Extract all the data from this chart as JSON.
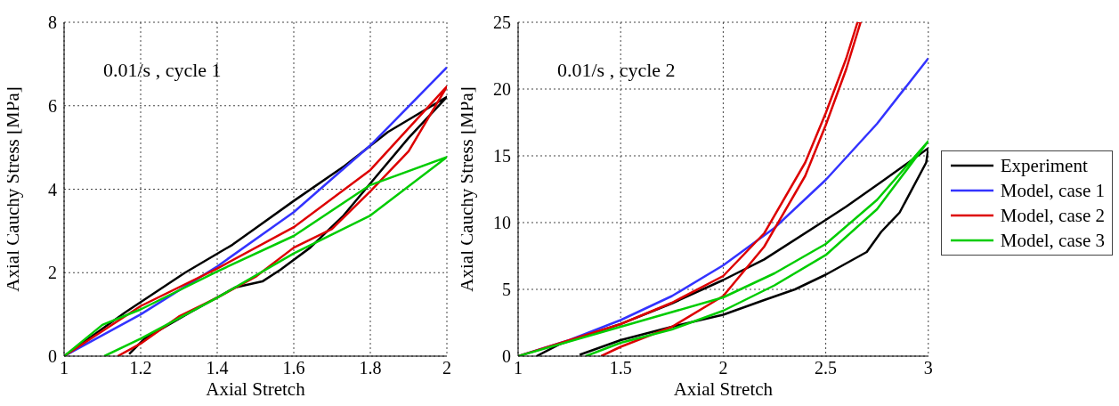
{
  "chart_data": [
    {
      "type": "line",
      "xlabel": "Axial Stretch",
      "ylabel": "Axial Cauchy Stress [MPa]",
      "annotations": [
        "0.01/s , cycle 1"
      ],
      "xlim": [
        1,
        2
      ],
      "xticks": [
        1,
        1.2,
        1.4,
        1.6,
        1.8,
        2
      ],
      "ylim": [
        0,
        8
      ],
      "yticks": [
        0,
        2,
        4,
        6,
        8
      ],
      "grid": true,
      "legend": false,
      "line_style": "solid",
      "marker": "none",
      "series": [
        {
          "color": "#000000",
          "x": [
            1,
            1.16,
            1.316,
            1.44,
            1.6,
            1.733,
            1.846,
            2,
            1.9,
            1.8,
            1.73,
            1.643,
            1.565,
            1.518,
            1.448,
            1.33,
            1.21,
            1.17
          ],
          "values": [
            0,
            1.05,
            2.0,
            2.67,
            3.72,
            4.56,
            5.37,
            6.21,
            5.23,
            4.14,
            3.37,
            2.6,
            2.07,
            1.79,
            1.65,
            1.05,
            0.42,
            0.05
          ]
        },
        {
          "color": "#3333ff",
          "x": [
            1,
            1.2,
            1.4,
            1.6,
            1.8,
            2
          ],
          "values": [
            0,
            1.0,
            2.15,
            3.45,
            5.05,
            6.92
          ]
        },
        {
          "color": "#dd0000",
          "x": [
            1,
            1.2,
            1.4,
            1.6,
            1.8,
            2,
            1.9,
            1.8,
            1.7,
            1.6,
            1.5,
            1.4,
            1.3,
            1.2,
            1.14
          ],
          "values": [
            0,
            1.2,
            2.1,
            3.09,
            4.46,
            6.46,
            4.91,
            3.95,
            3.05,
            2.6,
            1.9,
            1.4,
            0.95,
            0.3,
            0
          ]
        },
        {
          "color": "#00cc00",
          "x": [
            1,
            1.1,
            1.2,
            1.4,
            1.6,
            1.8,
            2,
            1.8,
            1.6,
            1.4,
            1.2,
            1.105
          ],
          "values": [
            0,
            0.75,
            1.12,
            2.03,
            2.88,
            4.1,
            4.77,
            3.37,
            2.46,
            1.4,
            0.42,
            0
          ]
        }
      ]
    },
    {
      "type": "line",
      "xlabel": "Axial Stretch",
      "ylabel": "Axial Cauchy Stress [MPa]",
      "annotations": [
        "0.01/s , cycle 2"
      ],
      "xlim": [
        1,
        3
      ],
      "xticks": [
        1,
        1.5,
        2,
        2.5,
        3
      ],
      "ylim": [
        0,
        25
      ],
      "yticks": [
        0,
        5,
        10,
        15,
        20,
        25
      ],
      "grid": true,
      "legend": "right",
      "line_style": "solid",
      "marker": "none",
      "series": [
        {
          "name": "Experiment",
          "color": "#000000",
          "x": [
            1.09,
            1.2,
            1.5,
            1.75,
            2,
            2.2,
            2.5,
            2.6,
            2.785,
            3,
            2.99,
            2.86,
            2.77,
            2.7,
            2.5,
            2.35,
            2.2,
            2,
            1.75,
            1.5,
            1.3
          ],
          "values": [
            0,
            0.88,
            2.41,
            3.95,
            5.7,
            7.24,
            10.2,
            11.2,
            13.2,
            15.57,
            14.5,
            10.75,
            9.3,
            7.8,
            6.1,
            5.0,
            4.2,
            3.1,
            2.2,
            1.2,
            0.1
          ]
        },
        {
          "name": "Model, case 1",
          "color": "#3333ff",
          "x": [
            1,
            1.25,
            1.5,
            1.75,
            2,
            2.25,
            2.5,
            2.75,
            3
          ],
          "values": [
            0,
            1.2,
            2.7,
            4.5,
            6.8,
            9.6,
            13.2,
            17.4,
            22.3
          ]
        },
        {
          "name": "Model, case 2",
          "color": "#dd0000",
          "x": [
            1,
            1.5,
            1.75,
            2,
            2.2,
            2.4,
            2.5,
            2.6,
            2.655,
            2.67,
            2.6,
            2.5,
            2.4,
            2.2,
            2,
            1.75,
            1.5,
            1.405
          ],
          "values": [
            0,
            2.4,
            4.0,
            6.0,
            9.2,
            14.5,
            18.2,
            22.3,
            25,
            25,
            21.5,
            17.3,
            13.5,
            8.2,
            4.5,
            2.2,
            0.7,
            0
          ]
        },
        {
          "name": "Model, case 3",
          "color": "#00cc00",
          "x": [
            1,
            1.5,
            1.75,
            2,
            2.25,
            2.5,
            2.75,
            3,
            2.75,
            2.5,
            2.25,
            2,
            1.75,
            1.5,
            1.33
          ],
          "values": [
            0,
            2.2,
            3.3,
            4.4,
            6.2,
            8.4,
            11.7,
            16.1,
            11.0,
            7.57,
            5.3,
            3.4,
            2.0,
            1.0,
            0
          ]
        }
      ]
    }
  ]
}
